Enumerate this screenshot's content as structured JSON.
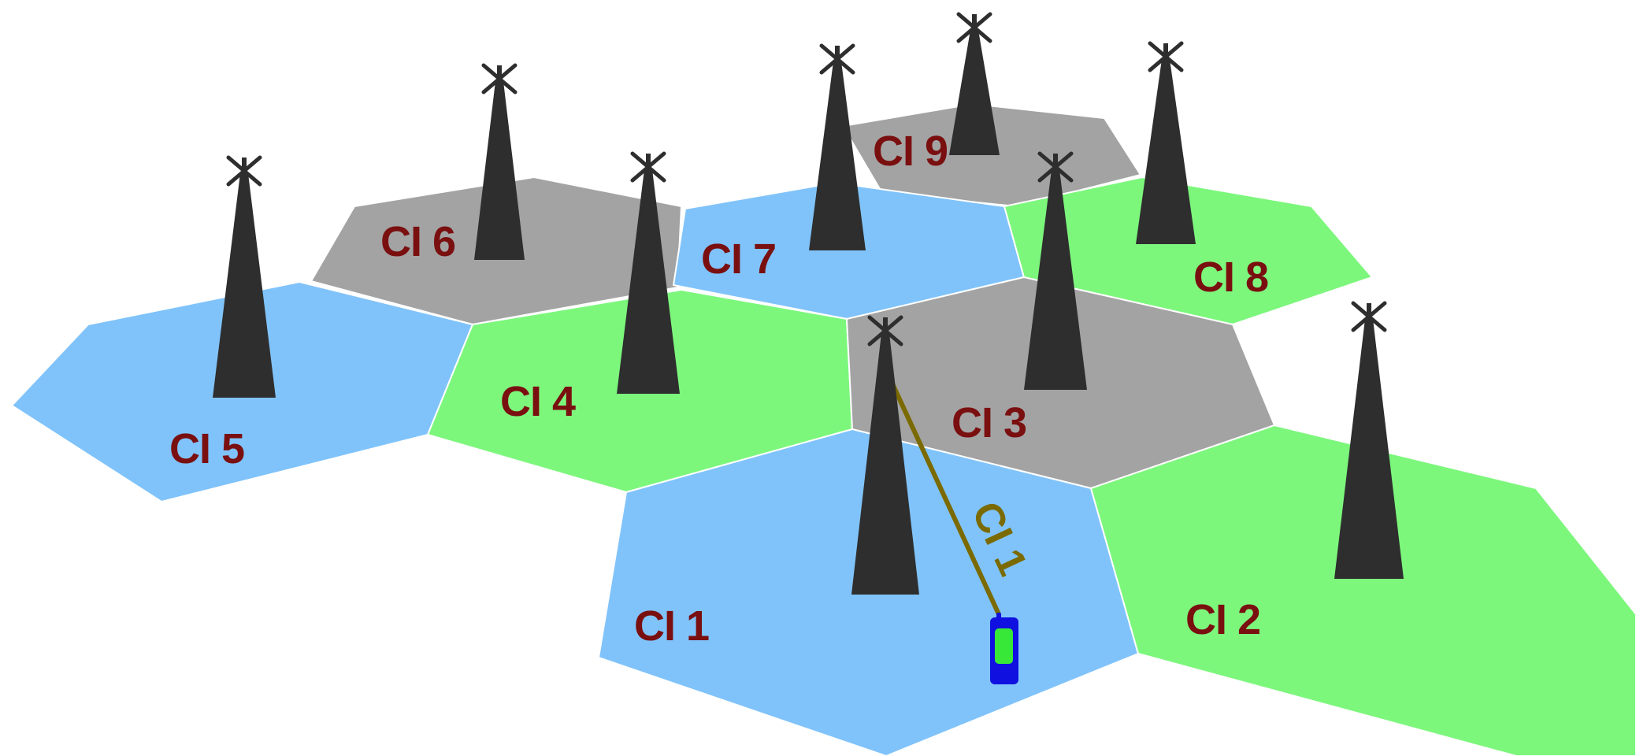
{
  "colors": {
    "blue_cell": "#80c3fa",
    "green_cell": "#7cf77c",
    "gray_cell": "#a3a3a3",
    "tower": "#2e2e2e",
    "label": "#7a0f10",
    "link": "#7a6a00",
    "phone_body": "#1010e0",
    "phone_screen": "#38e838"
  },
  "cells": {
    "ci1": {
      "label": "CI 1",
      "color": "blue"
    },
    "ci2": {
      "label": "CI 2",
      "color": "green"
    },
    "ci3": {
      "label": "CI 3",
      "color": "gray"
    },
    "ci4": {
      "label": "CI 4",
      "color": "green"
    },
    "ci5": {
      "label": "CI 5",
      "color": "blue"
    },
    "ci6": {
      "label": "CI 6",
      "color": "gray"
    },
    "ci7": {
      "label": "CI 7",
      "color": "blue"
    },
    "ci8": {
      "label": "CI 8",
      "color": "green"
    },
    "ci9": {
      "label": "CI 9",
      "color": "gray"
    }
  },
  "link": {
    "label": "CI 1"
  },
  "icons": {
    "tower": "cell-tower-icon",
    "phone": "mobile-phone-icon"
  }
}
